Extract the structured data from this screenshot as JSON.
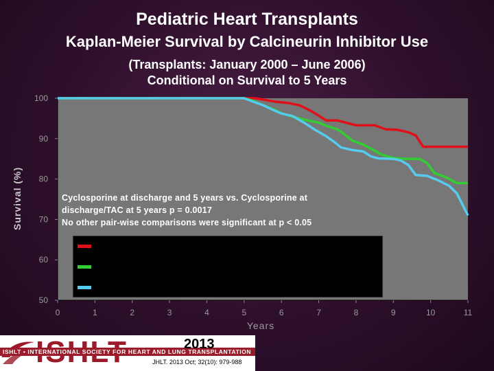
{
  "slide": {
    "title": "Pediatric Heart Transplants",
    "subtitle": "Kaplan-Meier Survival by Calcineurin Inhibitor Use",
    "subtitle2_line1": "(Transplants: January 2000 – June 2006)",
    "subtitle2_line2": "Conditional on Survival to 5 Years"
  },
  "annotation": {
    "line1": "Cyclosporine at discharge and 5 years vs. Cyclosporine at",
    "line2": "discharge/TAC at 5 years p = 0.0017",
    "line3": "No other pair-wise comparisons were significant at p < 0.05"
  },
  "footer": {
    "logo_text": "ISHLT",
    "logo_band": "ISHLT • INTERNATIONAL SOCIETY FOR HEART AND LUNG TRANSPLANTATION",
    "year": "2013",
    "citation": "JHLT. 2013 Oct; 32(10): 979-988"
  },
  "colors": {
    "background": "#2e0f2b",
    "plot_area": "#777777",
    "series_red": "#e0101a",
    "series_green": "#33cc33",
    "series_cyan": "#55ccee",
    "legend_bg": "#000000"
  },
  "chart_data": {
    "type": "line",
    "title": "",
    "xlabel": "Years",
    "ylabel": "Survival (%)",
    "xlim": [
      0,
      11
    ],
    "ylim": [
      50,
      100
    ],
    "xticks": [
      0,
      1,
      2,
      3,
      4,
      5,
      6,
      7,
      8,
      9,
      10,
      11
    ],
    "yticks": [
      50,
      60,
      70,
      80,
      90,
      100
    ],
    "grid": false,
    "legend_position": "bottom-left",
    "series": [
      {
        "color": "#e0101a",
        "points": [
          [
            0,
            100
          ],
          [
            5.3,
            100
          ],
          [
            5.5,
            99.7
          ],
          [
            5.8,
            99.2
          ],
          [
            6.2,
            98.8
          ],
          [
            6.5,
            98.2
          ],
          [
            6.8,
            96.8
          ],
          [
            7.0,
            95.7
          ],
          [
            7.2,
            94.5
          ],
          [
            7.5,
            94.5
          ],
          [
            7.8,
            93.8
          ],
          [
            8.0,
            93.3
          ],
          [
            8.5,
            93.3
          ],
          [
            8.8,
            92.3
          ],
          [
            9.1,
            92.2
          ],
          [
            9.4,
            91.6
          ],
          [
            9.6,
            90.8
          ],
          [
            9.8,
            88.0
          ],
          [
            10.2,
            88.0
          ],
          [
            11,
            88.0
          ]
        ]
      },
      {
        "color": "#33cc33",
        "points": [
          [
            0,
            100
          ],
          [
            5.0,
            100
          ],
          [
            5.2,
            99.5
          ],
          [
            5.5,
            98.3
          ],
          [
            5.8,
            97.2
          ],
          [
            6.0,
            96.3
          ],
          [
            6.3,
            95.4
          ],
          [
            6.7,
            94.5
          ],
          [
            7.0,
            94.0
          ],
          [
            7.2,
            93.2
          ],
          [
            7.5,
            92.3
          ],
          [
            7.7,
            91.0
          ],
          [
            7.9,
            89.5
          ],
          [
            8.2,
            88.5
          ],
          [
            8.5,
            87.0
          ],
          [
            8.7,
            86.0
          ],
          [
            9.0,
            85.2
          ],
          [
            9.3,
            85.0
          ],
          [
            9.7,
            85.0
          ],
          [
            9.9,
            84.0
          ],
          [
            10.1,
            81.5
          ],
          [
            10.4,
            80.5
          ],
          [
            10.7,
            79.0
          ],
          [
            11,
            79.0
          ]
        ]
      },
      {
        "color": "#55ccee",
        "points": [
          [
            0,
            100
          ],
          [
            5.0,
            100
          ],
          [
            5.2,
            99.3
          ],
          [
            5.5,
            98.3
          ],
          [
            5.8,
            97.0
          ],
          [
            6.0,
            96.2
          ],
          [
            6.3,
            95.6
          ],
          [
            6.6,
            94.0
          ],
          [
            6.9,
            92.2
          ],
          [
            7.2,
            90.6
          ],
          [
            7.4,
            89.3
          ],
          [
            7.6,
            87.8
          ],
          [
            7.9,
            87.2
          ],
          [
            8.2,
            86.8
          ],
          [
            8.4,
            85.6
          ],
          [
            8.6,
            85.1
          ],
          [
            9.0,
            85.0
          ],
          [
            9.2,
            84.6
          ],
          [
            9.4,
            83.5
          ],
          [
            9.6,
            81.0
          ],
          [
            9.9,
            80.8
          ],
          [
            10.2,
            79.7
          ],
          [
            10.5,
            78.3
          ],
          [
            10.7,
            76.5
          ],
          [
            11,
            71.0
          ]
        ]
      }
    ]
  }
}
